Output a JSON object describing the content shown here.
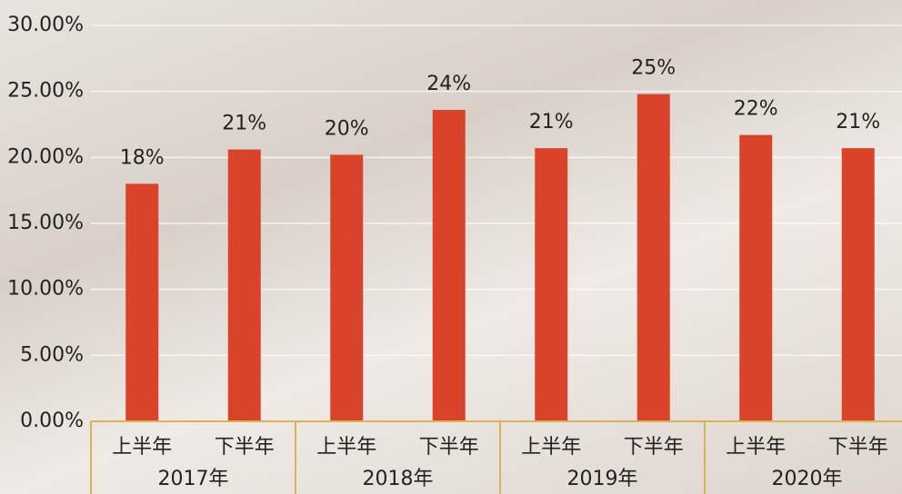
{
  "chart_data": {
    "type": "bar",
    "categories": [
      "上半年",
      "下半年",
      "上半年",
      "下半年",
      "上半年",
      "下半年",
      "上半年",
      "下半年"
    ],
    "groups": [
      "2017年",
      "2018年",
      "2019年",
      "2020年"
    ],
    "values": [
      18.0,
      20.6,
      20.2,
      23.6,
      20.7,
      24.8,
      21.7,
      20.7
    ],
    "value_labels": [
      "18%",
      "21%",
      "20%",
      "24%",
      "21%",
      "25%",
      "22%",
      "21%"
    ],
    "color": "#d9432a",
    "ylim": [
      0,
      30
    ],
    "yticks": [
      {
        "value": 0,
        "label": "0.00%"
      },
      {
        "value": 5,
        "label": "5.00%"
      },
      {
        "value": 10,
        "label": "10.00%"
      },
      {
        "value": 15,
        "label": "15.00%"
      },
      {
        "value": 20,
        "label": "20.00%"
      },
      {
        "value": 25,
        "label": "25.00%"
      },
      {
        "value": 30,
        "label": "30.00%"
      }
    ],
    "grid": true
  }
}
